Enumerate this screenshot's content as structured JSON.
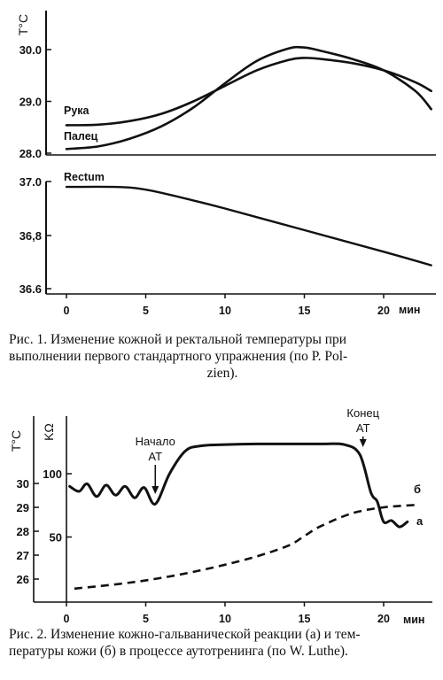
{
  "chart_data": [
    {
      "type": "line",
      "panel": "upper",
      "ylabel": "T°C",
      "yticks": [
        "30.0",
        "29.0",
        "28.0"
      ],
      "ylim": [
        28.0,
        30.6
      ],
      "x": [
        0,
        2,
        4,
        6,
        8,
        10,
        12,
        14,
        15,
        16,
        18,
        20,
        22,
        23
      ],
      "series": [
        {
          "name": "Рука",
          "values": [
            28.54,
            28.55,
            28.62,
            28.76,
            29.0,
            29.3,
            29.6,
            29.8,
            29.84,
            29.82,
            29.74,
            29.6,
            29.37,
            29.2
          ]
        },
        {
          "name": "Палец",
          "values": [
            28.08,
            28.13,
            28.28,
            28.52,
            28.88,
            29.35,
            29.78,
            30.02,
            30.04,
            29.98,
            29.82,
            29.6,
            29.2,
            28.85
          ]
        }
      ]
    },
    {
      "type": "line",
      "panel": "lower",
      "yticks": [
        "37.0",
        "36,8",
        "36.6"
      ],
      "ylim": [
        36.6,
        37.0
      ],
      "x": [
        0,
        3,
        5,
        8,
        10,
        15,
        20,
        23
      ],
      "series": [
        {
          "name": "Rectum",
          "values": [
            36.98,
            36.98,
            36.97,
            36.93,
            36.9,
            36.82,
            36.74,
            36.69
          ]
        }
      ]
    },
    {
      "type": "line",
      "xlabel": "мин",
      "xticks": [
        "0",
        "5",
        "10",
        "15",
        "20"
      ],
      "xlim": [
        -0.5,
        23
      ],
      "y_axis_left_label": "T°C",
      "y_axis_left_ticks": [
        "30",
        "29",
        "28",
        "27",
        "26"
      ],
      "y_axis_right_label": "KΩ",
      "y_axis_right_ticks": [
        "100",
        "50"
      ],
      "annotations": [
        {
          "label": "Начало",
          "label2": "AT",
          "x": 5.6
        },
        {
          "label": "Конец",
          "label2": "AT",
          "x": 18.7
        }
      ],
      "series": [
        {
          "name": "а",
          "unit": "KΩ",
          "x": [
            0.2,
            0.8,
            1.3,
            1.9,
            2.5,
            3.1,
            3.7,
            4.3,
            4.9,
            5.6,
            6.5,
            7.5,
            8.5,
            10,
            12,
            14,
            16,
            17.5,
            18.5,
            19.2,
            19.6,
            20.0,
            20.5,
            21.0,
            21.5
          ],
          "values": [
            90,
            86,
            92,
            82,
            91,
            83,
            90,
            81,
            89,
            76,
            100,
            118,
            122,
            123,
            123.5,
            123.5,
            123.5,
            123,
            115,
            85,
            78,
            62,
            63,
            58,
            62
          ]
        },
        {
          "name": "б",
          "unit": "°C",
          "x": [
            0.5,
            2,
            4,
            6,
            8,
            10,
            12,
            14,
            15,
            16,
            18,
            20,
            22
          ],
          "values": [
            25.6,
            25.7,
            25.85,
            26.05,
            26.3,
            26.6,
            26.95,
            27.4,
            27.8,
            28.2,
            28.75,
            29.0,
            29.1
          ]
        }
      ]
    }
  ],
  "captions": {
    "fig1_line1": "Рис. 1. Изменение кожной и ректальной температуры при",
    "fig1_line2": "выполнении первого стандартного упражнения (по P. Pol-",
    "fig1_line3": "zien).",
    "fig2_line1": "Рис. 2. Изменение кожно-гальванической реакции (а) и тем-",
    "fig2_line2": "пературы кожи (б) в процессе аутотренинга (по W. Luthe)."
  },
  "colors": {
    "ink": "#111111",
    "paper": "#ffffff"
  }
}
